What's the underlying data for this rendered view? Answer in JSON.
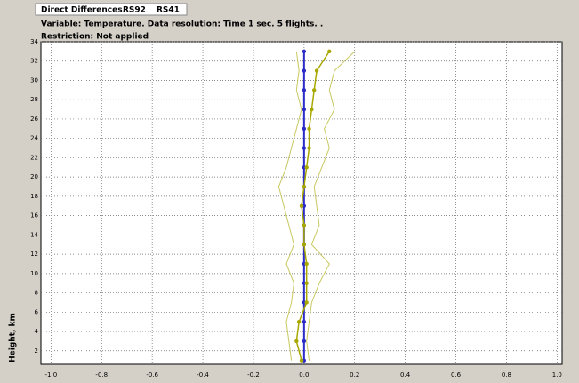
{
  "chart_data": {
    "type": "profile",
    "title": "Direct Differences.",
    "subtitle": "Variable: Temperature. Data resolution: Time 1 sec. 5 flights. .",
    "note": "Restriction: Not applied",
    "y_label": "Height, km",
    "y": [
      1,
      3,
      5,
      7,
      9,
      11,
      13,
      15,
      17,
      19,
      21,
      23,
      25,
      27,
      29,
      31,
      33
    ],
    "series": [
      {
        "name": "RS92",
        "color": "#2b2bc8",
        "markers": true,
        "values": [
          0,
          0,
          0,
          0,
          0,
          0,
          0,
          0,
          0,
          0,
          0,
          0,
          0,
          0,
          0,
          0,
          0
        ]
      },
      {
        "name": "RS41",
        "color": "#a8a800",
        "markers": true,
        "values": [
          -0.01,
          -0.03,
          -0.02,
          0.01,
          0.01,
          0.01,
          0,
          0,
          -0.01,
          0,
          0.01,
          0.02,
          0.02,
          0.03,
          0.04,
          0.05,
          0.1
        ]
      },
      {
        "color": "#c8c860",
        "markers": false,
        "values": [
          -0.05,
          -0.06,
          -0.07,
          -0.05,
          -0.04,
          -0.07,
          -0.04,
          -0.06,
          -0.08,
          -0.1,
          -0.07,
          -0.05,
          -0.03,
          -0.01,
          -0.03,
          -0.02,
          -0.03
        ]
      },
      {
        "color": "#c8c860",
        "markers": false,
        "values": [
          0.02,
          0.01,
          0.02,
          0.03,
          0.06,
          0.1,
          0.03,
          0.06,
          0.05,
          0.04,
          0.07,
          0.1,
          0.08,
          0.12,
          0.1,
          0.12,
          0.2
        ]
      }
    ],
    "xlim": [
      -1.04,
      1.02
    ],
    "xticks": [
      {
        "value": -1,
        "label": "-1.0"
      },
      -0.8,
      -0.6,
      -0.4,
      -0.2,
      {
        "value": 0,
        "label": "0.0"
      },
      0.2,
      0.4,
      0.6,
      0.8,
      {
        "value": 1,
        "label": "1.0"
      }
    ],
    "ylim": [
      0.6,
      34
    ],
    "yticks": [
      2,
      4,
      6,
      8,
      10,
      12,
      14,
      16,
      18,
      20,
      22,
      24,
      26,
      28,
      30,
      32,
      34
    ],
    "grid": true
  }
}
